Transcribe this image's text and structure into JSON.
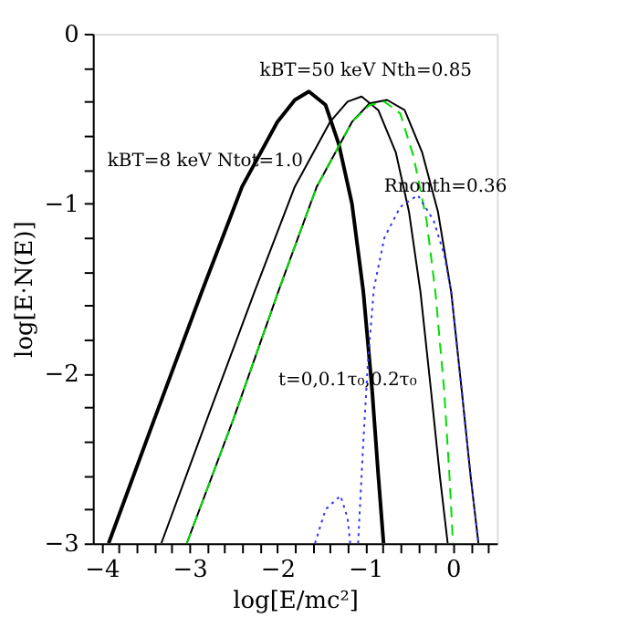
{
  "chart_data": {
    "type": "line",
    "xlabel": "log[E/mc²]",
    "ylabel": "log[E·N(E)]",
    "xlim": [
      -4.1,
      0.5
    ],
    "ylim": [
      -3,
      0
    ],
    "xticks": [
      -4,
      {
        "value": -3.8,
        "label": null
      },
      {
        "value": -3.6,
        "label": null
      },
      {
        "value": -3.4,
        "label": null
      },
      {
        "value": -3.2,
        "label": null
      },
      -3,
      {
        "value": -2.8,
        "label": null
      },
      {
        "value": -2.6,
        "label": null
      },
      {
        "value": -2.4,
        "label": null
      },
      {
        "value": -2.2,
        "label": null
      },
      -2,
      {
        "value": -1.8,
        "label": null
      },
      {
        "value": -1.6,
        "label": null
      },
      {
        "value": -1.4,
        "label": null
      },
      {
        "value": -1.2,
        "label": null
      },
      -1,
      {
        "value": -0.8,
        "label": null
      },
      {
        "value": -0.6,
        "label": null
      },
      {
        "value": -0.4,
        "label": null
      },
      {
        "value": -0.2,
        "label": null
      },
      0,
      {
        "value": 0.2,
        "label": null
      },
      {
        "value": 0.4,
        "label": null
      }
    ],
    "yticks": [
      -3,
      {
        "value": -2.8,
        "label": null
      },
      {
        "value": -2.6,
        "label": null
      },
      {
        "value": -2.4,
        "label": null
      },
      {
        "value": -2.2,
        "label": null
      },
      -2,
      {
        "value": -1.8,
        "label": null
      },
      {
        "value": -1.6,
        "label": null
      },
      {
        "value": -1.4,
        "label": null
      },
      {
        "value": -1.2,
        "label": null
      },
      -1,
      {
        "value": -0.8,
        "label": null
      },
      {
        "value": -0.6,
        "label": null
      },
      {
        "value": -0.4,
        "label": null
      },
      {
        "value": -0.2,
        "label": null
      },
      0
    ],
    "grid": false,
    "marker": "none",
    "series": [
      {
        "color": "#000000",
        "line_style": "solid",
        "x": [
          -3.92,
          -3.4,
          -2.86,
          -2.4,
          -2.0,
          -1.8,
          -1.64,
          -1.45,
          -1.3,
          -1.15,
          -1.02,
          -0.92,
          -0.85,
          -0.79
        ],
        "values": [
          -3,
          -2.27,
          -1.52,
          -0.9,
          -0.52,
          -0.39,
          -0.34,
          -0.42,
          -0.65,
          -1.0,
          -1.52,
          -2.1,
          -2.6,
          -3
        ]
      },
      {
        "color": "#000000",
        "line_style": "solid",
        "x": [
          -3.32,
          -2.8,
          -2.26,
          -1.8,
          -1.4,
          -1.2,
          -1.04,
          -0.85,
          -0.65,
          -0.5,
          -0.37,
          -0.25,
          -0.15,
          -0.06
        ],
        "values": [
          -3,
          -2.27,
          -1.52,
          -0.9,
          -0.52,
          -0.4,
          -0.37,
          -0.45,
          -0.7,
          -1.05,
          -1.52,
          -2.1,
          -2.6,
          -3
        ]
      },
      {
        "color": "#000000",
        "line_style": "solid",
        "x": [
          -3.03,
          -2.5,
          -1.99,
          -1.55,
          -1.15,
          -0.95,
          -0.75,
          -0.55,
          -0.35,
          -0.17,
          -0.02,
          0.1,
          0.2,
          0.29
        ],
        "values": [
          -3,
          -2.27,
          -1.52,
          -0.9,
          -0.52,
          -0.41,
          -0.39,
          -0.45,
          -0.7,
          -1.05,
          -1.52,
          -2.1,
          -2.6,
          -3
        ]
      },
      {
        "color": "#00dd00",
        "line_style": "dashed",
        "x": [
          -3.03,
          -2.5,
          -1.99,
          -1.55,
          -1.15,
          -0.95,
          -0.78,
          -0.6,
          -0.45,
          -0.3,
          -0.2,
          -0.1,
          -0.04,
          0.0
        ],
        "values": [
          -3,
          -2.27,
          -1.52,
          -0.9,
          -0.52,
          -0.42,
          -0.4,
          -0.47,
          -0.72,
          -1.1,
          -1.52,
          -2.1,
          -2.6,
          -3
        ]
      },
      {
        "color": "#3333ff",
        "line_style": "dotted",
        "x": [
          -1.08,
          -1.02,
          -0.97,
          -0.9,
          -0.78,
          -0.6,
          -0.4,
          -0.22,
          -0.1,
          -0.02,
          0.1,
          0.2,
          0.29
        ],
        "values": [
          -3,
          -2.4,
          -1.95,
          -1.5,
          -1.2,
          -1.02,
          -0.95,
          -1.1,
          -1.3,
          -1.52,
          -2.1,
          -2.6,
          -3
        ]
      },
      {
        "color": "#3333ff",
        "line_style": "dotted",
        "x": [
          -1.57,
          -1.45,
          -1.28,
          -1.2,
          -1.17
        ],
        "values": [
          -3,
          -2.8,
          -2.72,
          -2.85,
          -3
        ]
      }
    ],
    "annotations": [
      "kBT=50 keV Nth=0.85",
      "kBT=8 keV Ntot=1.0",
      "Rnonth=0.36",
      "t=0,0.1τ₀,0.2τ₀"
    ]
  }
}
